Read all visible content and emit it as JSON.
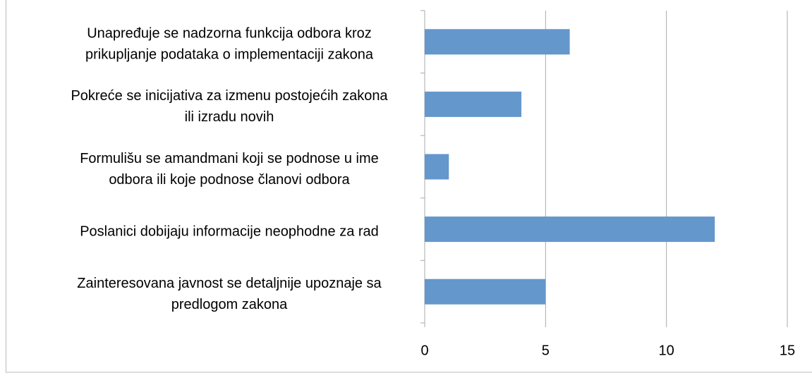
{
  "chart_data": {
    "type": "barh",
    "categories": [
      [
        "Unapređuje se nadzorna funkcija odbora kroz",
        "prikupljanje podataka o implementaciji zakona"
      ],
      [
        "Pokreće se inicijativa za izmenu postojećih zakona",
        "ili izradu novih"
      ],
      [
        "Formulišu se amandmani koji se podnose u ime",
        "odbora ili koje podnose članovi odbora"
      ],
      [
        "Poslanici dobijaju informacije neophodne za rad"
      ],
      [
        "Zainteresovana javnost se detaljnije upoznaje sa",
        "predlogom zakona"
      ]
    ],
    "values": [
      6,
      4,
      1,
      12,
      5
    ],
    "color": "#6497cc",
    "xlim": [
      0,
      15
    ],
    "xticks": [
      0,
      5,
      10,
      15
    ],
    "grid": true
  }
}
